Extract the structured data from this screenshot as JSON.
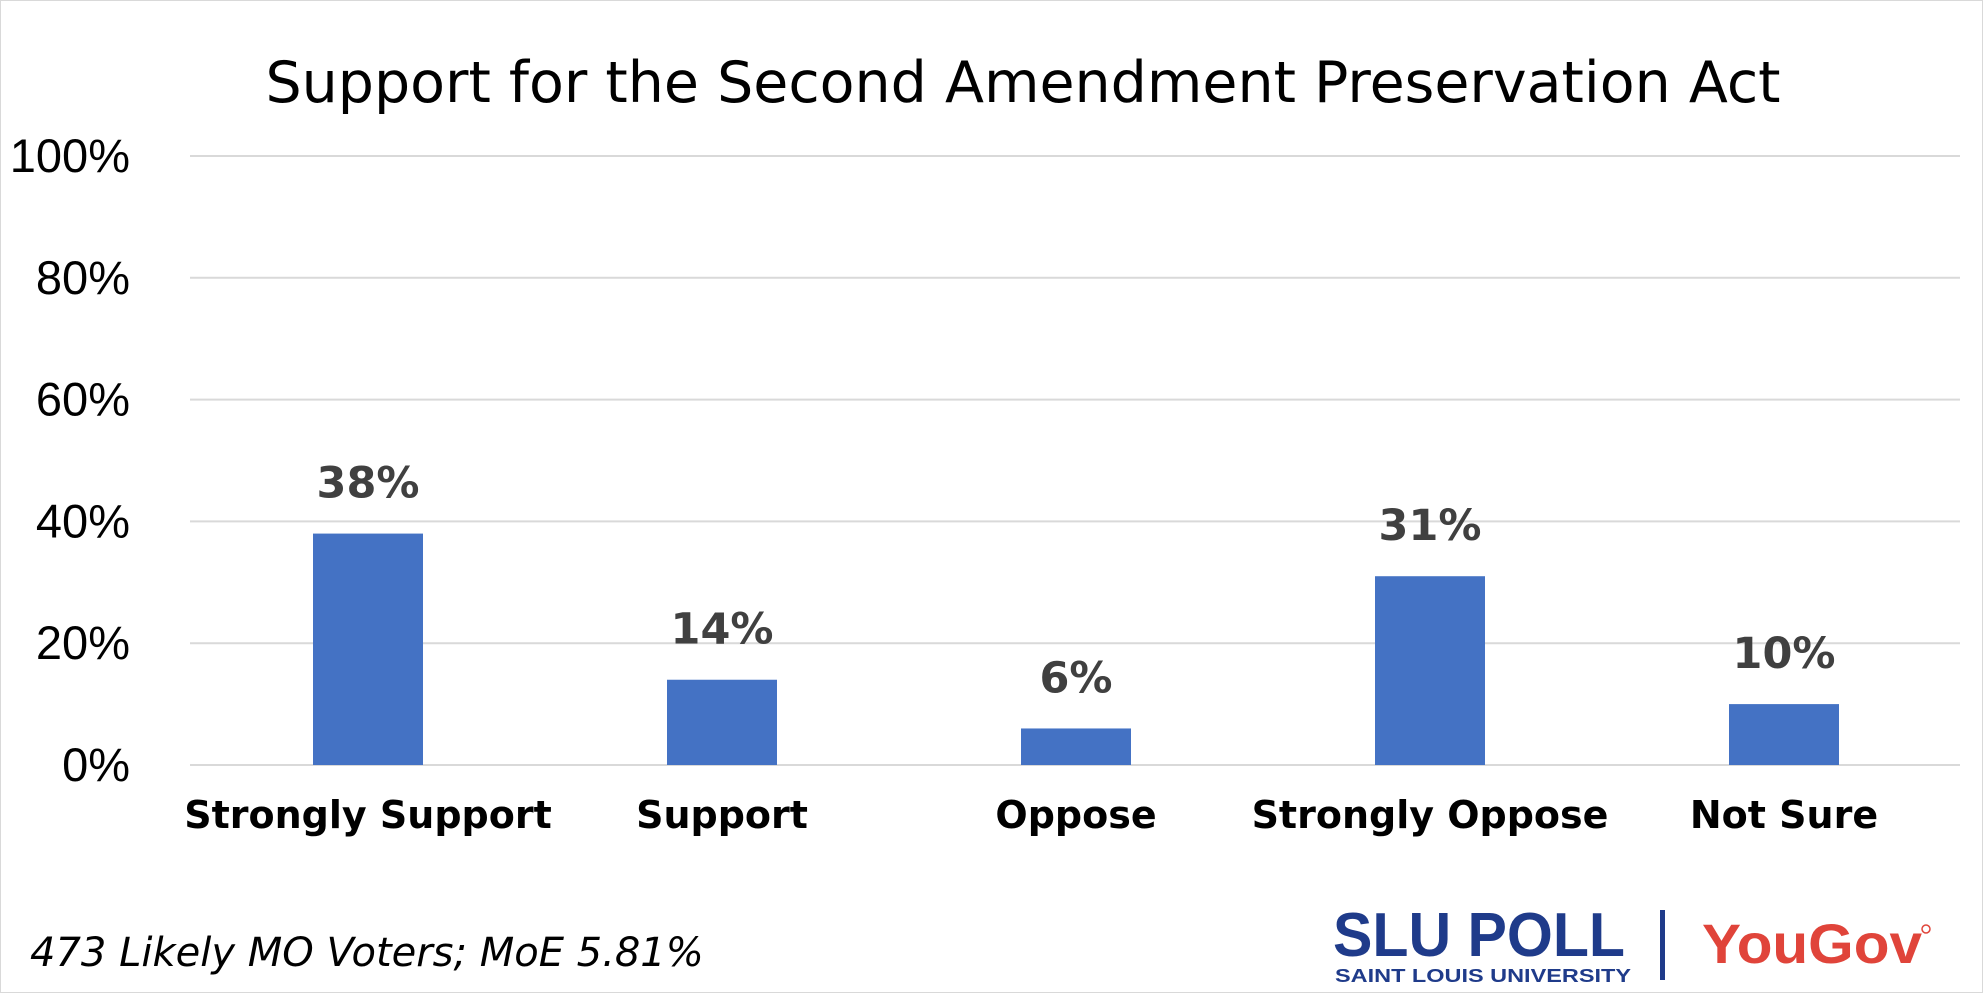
{
  "chart_data": {
    "type": "bar",
    "title": "Support for the Second Amendment Preservation Act",
    "categories": [
      "Strongly Support",
      "Support",
      "Oppose",
      "Strongly Oppose",
      "Not Sure"
    ],
    "values": [
      38,
      14,
      6,
      31,
      10
    ],
    "data_labels": [
      "38%",
      "14%",
      "6%",
      "31%",
      "10%"
    ],
    "xlabel": "",
    "ylabel": "",
    "ylim": [
      0,
      100
    ],
    "yticks": [
      0,
      20,
      40,
      60,
      80,
      100
    ],
    "ytick_labels": [
      "0%",
      "20%",
      "40%",
      "60%",
      "80%",
      "100%"
    ],
    "grid": true,
    "legend": "none",
    "bar_color": "#4472c4"
  },
  "footnote": "473 Likely MO Voters; MoE 5.81%",
  "logos": {
    "slu_main": "SLU POLL",
    "slu_sub": "SAINT LOUIS UNIVERSITY",
    "yougov": "YouGov",
    "slu_color": "#1f3b8a",
    "yougov_color": "#e0443a"
  }
}
